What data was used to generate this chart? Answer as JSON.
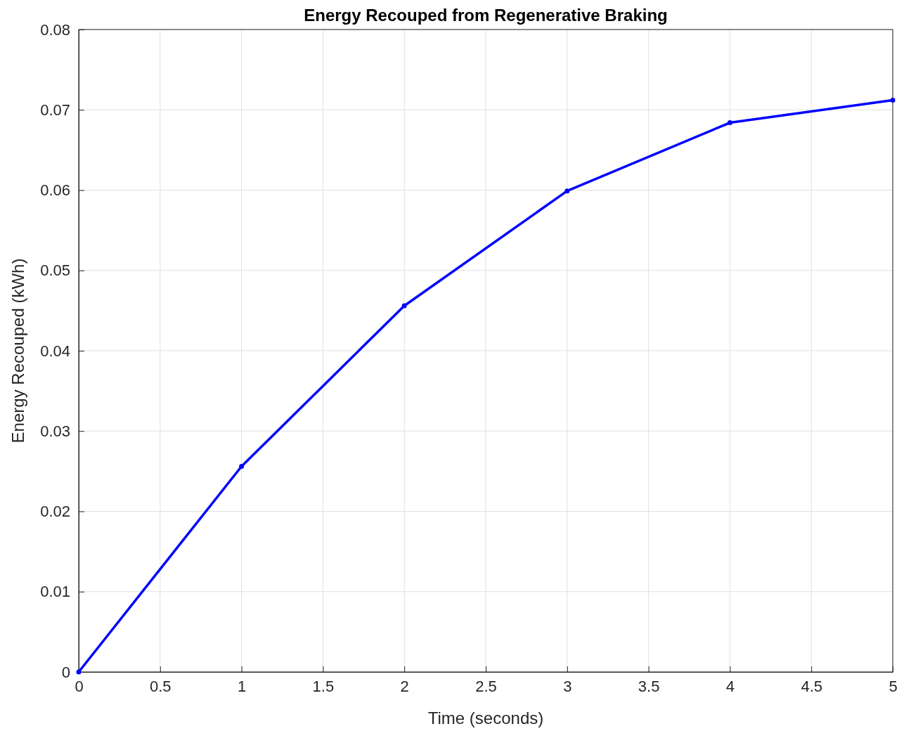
{
  "chart_data": {
    "type": "line",
    "title": "Energy Recouped from Regenerative Braking",
    "xlabel": "Time (seconds)",
    "ylabel": "Energy Recouped (kWh)",
    "x": [
      0,
      1,
      2,
      3,
      4,
      5
    ],
    "series": [
      {
        "color": "#0000ff",
        "values": [
          0,
          0.0256,
          0.0456,
          0.0599,
          0.0684,
          0.0712
        ]
      }
    ],
    "xlim": [
      0,
      5
    ],
    "xticks": [
      0,
      0.5,
      1,
      1.5,
      2,
      2.5,
      3,
      3.5,
      4,
      4.5,
      5
    ],
    "ylim": [
      0,
      0.08
    ],
    "yticks": [
      0,
      0.01,
      0.02,
      0.03,
      0.04,
      0.05,
      0.06,
      0.07,
      0.08
    ],
    "grid": true,
    "marker": "circle",
    "line_style": "solid"
  }
}
